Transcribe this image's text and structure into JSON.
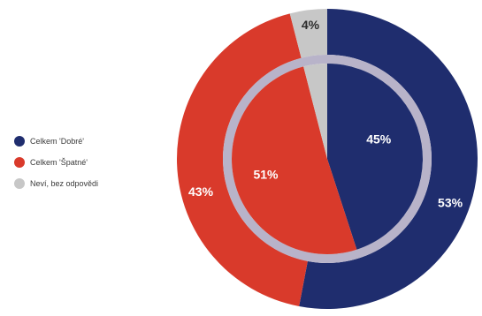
{
  "chart_data": {
    "type": "pie",
    "variant": "nested-donut",
    "legend": {
      "placement": "left",
      "entries": [
        {
          "label": "Celkem 'Dobré'",
          "color": "#1f2d6e"
        },
        {
          "label": "Celkem 'Špatné'",
          "color": "#d93a2b"
        },
        {
          "label": "Neví, bez odpovědi",
          "color": "#c7c7c7"
        }
      ]
    },
    "series": [
      {
        "ring": "outer",
        "values": [
          53,
          43,
          4
        ],
        "labels": [
          "53%",
          "43%",
          "4%"
        ]
      },
      {
        "ring": "inner",
        "values": [
          45,
          51,
          4
        ],
        "labels": [
          "45%",
          "51%",
          ""
        ]
      }
    ],
    "categories": [
      "Celkem 'Dobré'",
      "Celkem 'Špatné'",
      "Neví, bez odpovědi"
    ],
    "separator_ring_color": "#b8b3c9"
  }
}
